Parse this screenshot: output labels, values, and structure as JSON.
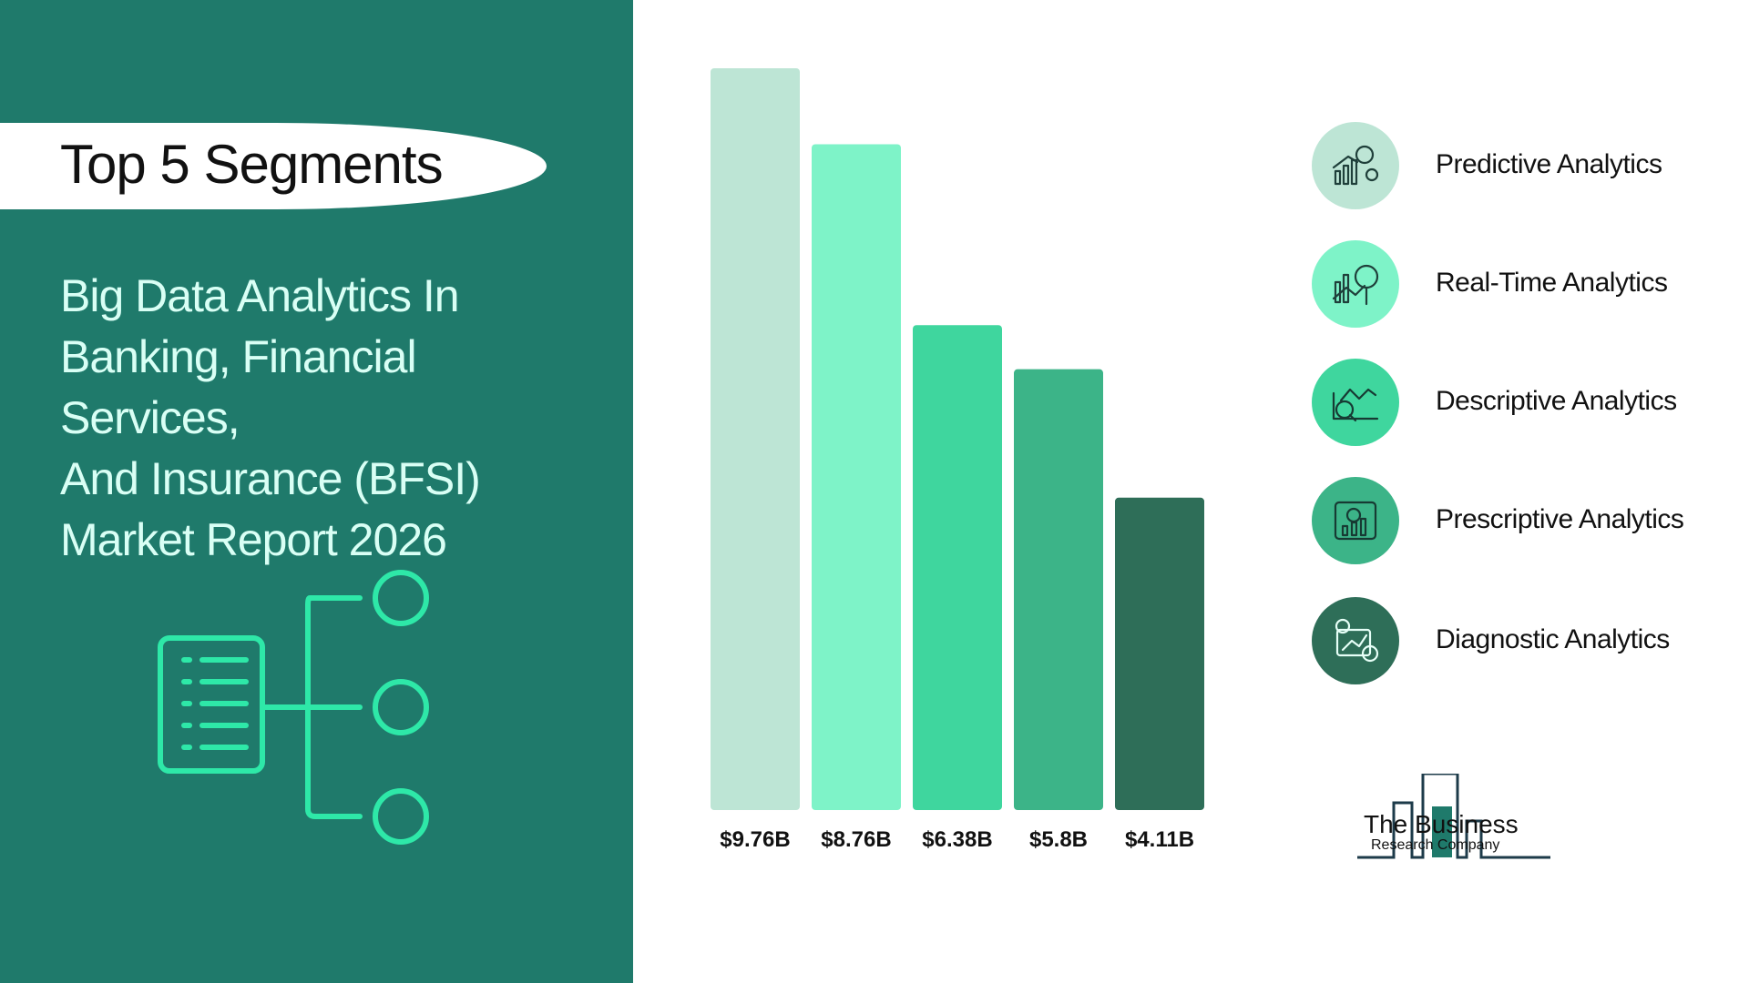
{
  "header": {
    "title": "Top 5 Segments",
    "report_title_lines": [
      "Big Data Analytics In",
      "Banking, Financial Services,",
      "And Insurance (BFSI)",
      "Market Report 2026"
    ]
  },
  "colors": {
    "panel": "#1f7a6b",
    "accent": "#2ee8a8"
  },
  "chart_data": {
    "type": "bar",
    "categories": [
      "Predictive Analytics",
      "Real-Time Analytics",
      "Descriptive Analytics",
      "Prescriptive Analytics",
      "Diagnostic Analytics"
    ],
    "values": [
      9.76,
      8.76,
      6.38,
      5.8,
      4.11
    ],
    "data_labels": [
      "$9.76B",
      "$8.76B",
      "$6.38B",
      "$5.8B",
      "$4.11B"
    ],
    "colors": [
      "#bde5d5",
      "#7ef3c8",
      "#3fd69e",
      "#3cb488",
      "#2e6e58"
    ],
    "title": "",
    "xlabel": "",
    "ylabel": "",
    "ylim": [
      0,
      9.76
    ],
    "grid": false,
    "legend_position": "right"
  },
  "legend": {
    "items": [
      {
        "label": "Predictive Analytics",
        "icon": "predictive-analytics-icon",
        "color": "#bde5d5"
      },
      {
        "label": "Real-Time Analytics",
        "icon": "real-time-analytics-icon",
        "color": "#7ef3c8"
      },
      {
        "label": "Descriptive Analytics",
        "icon": "descriptive-analytics-icon",
        "color": "#3fd69e"
      },
      {
        "label": "Prescriptive Analytics",
        "icon": "prescriptive-analytics-icon",
        "color": "#3cb488"
      },
      {
        "label": "Diagnostic Analytics",
        "icon": "diagnostic-analytics-icon",
        "color": "#2e6e58"
      }
    ]
  },
  "logo": {
    "line1": "The Business",
    "line2": "Research Company"
  }
}
